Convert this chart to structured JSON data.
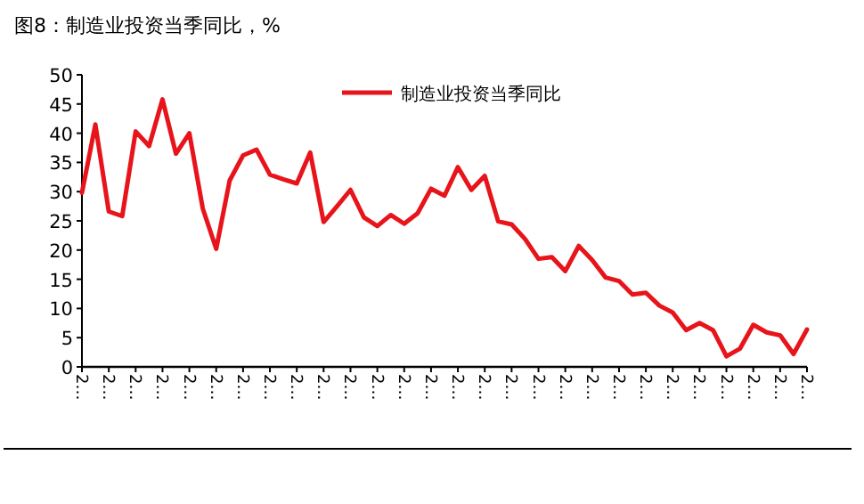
{
  "chart_data": {
    "type": "line",
    "title": "图8：制造业投资当季同比，%",
    "categories": [
      "2…",
      null,
      "2…",
      null,
      "2…",
      null,
      "2…",
      null,
      "2…",
      null,
      "2…",
      null,
      "2…",
      null,
      "2…",
      null,
      "2…",
      null,
      "2…",
      null,
      "2…",
      null,
      "2…",
      null,
      "2…",
      null,
      "2…",
      null,
      "2…",
      null,
      "2…",
      null,
      "2…",
      null,
      "2…",
      null,
      "2…",
      null,
      "2…",
      null,
      "2…",
      null,
      "2…",
      null,
      "2…",
      null,
      "2…",
      null,
      "2…",
      null,
      "2…",
      null,
      "2…",
      null,
      "2…"
    ],
    "series": [
      {
        "name": "制造业投资当季同比",
        "color": "#e8141b",
        "values": [
          29.8,
          41.5,
          26.6,
          25.8,
          40.3,
          37.8,
          45.8,
          36.5,
          40.0,
          27.1,
          20.2,
          31.9,
          36.2,
          37.2,
          32.9,
          32.1,
          31.4,
          36.7,
          24.8,
          27.5,
          30.3,
          25.6,
          24.1,
          26.0,
          24.5,
          26.3,
          30.5,
          29.3,
          34.2,
          30.3,
          32.7,
          24.9,
          24.4,
          21.9,
          18.5,
          18.8,
          16.4,
          20.7,
          18.3,
          15.3,
          14.7,
          12.4,
          12.7,
          10.5,
          9.3,
          6.3,
          7.5,
          6.3,
          1.8,
          3.1,
          7.2,
          5.9,
          5.4,
          2.2,
          6.4
        ]
      }
    ],
    "ylim": [
      0,
      50
    ],
    "yticks": [
      0,
      5,
      10,
      15,
      20,
      25,
      30,
      35,
      40,
      45,
      50
    ],
    "grid": false,
    "legend": "top",
    "marker": "none",
    "line_style": "solid"
  }
}
